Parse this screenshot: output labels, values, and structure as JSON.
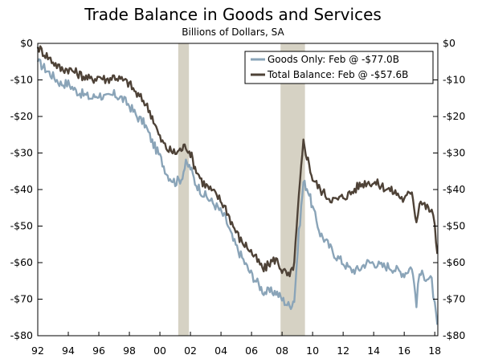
{
  "chart_data": {
    "type": "line",
    "title": "Trade Balance in Goods and Services",
    "subtitle": "Billions of Dollars, SA",
    "xlabel": "",
    "ylabel": "",
    "x_ticks": [
      "92",
      "94",
      "96",
      "98",
      "00",
      "02",
      "04",
      "06",
      "08",
      "10",
      "12",
      "14",
      "16",
      "18"
    ],
    "x_range": [
      1992,
      2018.2
    ],
    "y_ticks": [
      "$0",
      "-$10",
      "-$20",
      "-$30",
      "-$40",
      "-$50",
      "-$60",
      "-$70",
      "-$80"
    ],
    "y_tick_values": [
      0,
      -10,
      -20,
      -30,
      -40,
      -50,
      -60,
      -70,
      -80
    ],
    "ylim": [
      -80,
      0
    ],
    "recessions": [
      [
        2001.2,
        2001.9
      ],
      [
        2007.9,
        2009.5
      ]
    ],
    "legend": {
      "position": "top-right"
    },
    "series": [
      {
        "name": "Goods Only: Feb @ -$77.0B",
        "color": "#8aa4b8",
        "points": [
          [
            1992.0,
            -5
          ],
          [
            1992.5,
            -7
          ],
          [
            1993.0,
            -9
          ],
          [
            1993.5,
            -11
          ],
          [
            1994.0,
            -11
          ],
          [
            1994.5,
            -13
          ],
          [
            1995.0,
            -14
          ],
          [
            1995.5,
            -15
          ],
          [
            1996.0,
            -14
          ],
          [
            1996.5,
            -15
          ],
          [
            1997.0,
            -14
          ],
          [
            1997.5,
            -15
          ],
          [
            1998.0,
            -17
          ],
          [
            1998.5,
            -20
          ],
          [
            1999.0,
            -22
          ],
          [
            1999.5,
            -27
          ],
          [
            2000.0,
            -31
          ],
          [
            2000.5,
            -36
          ],
          [
            2001.0,
            -38
          ],
          [
            2001.4,
            -37
          ],
          [
            2001.7,
            -33
          ],
          [
            2002.0,
            -34
          ],
          [
            2002.3,
            -38
          ],
          [
            2002.8,
            -41
          ],
          [
            2003.3,
            -43
          ],
          [
            2003.8,
            -45
          ],
          [
            2004.3,
            -48
          ],
          [
            2004.8,
            -54
          ],
          [
            2005.3,
            -58
          ],
          [
            2005.8,
            -62
          ],
          [
            2006.3,
            -65
          ],
          [
            2006.8,
            -68
          ],
          [
            2007.2,
            -68
          ],
          [
            2007.6,
            -68
          ],
          [
            2008.0,
            -70
          ],
          [
            2008.5,
            -72
          ],
          [
            2008.8,
            -70
          ],
          [
            2009.1,
            -52
          ],
          [
            2009.4,
            -38
          ],
          [
            2009.7,
            -40
          ],
          [
            2010.0,
            -45
          ],
          [
            2010.5,
            -52
          ],
          [
            2011.0,
            -55
          ],
          [
            2011.5,
            -58
          ],
          [
            2012.0,
            -60
          ],
          [
            2012.5,
            -62
          ],
          [
            2013.0,
            -62
          ],
          [
            2013.5,
            -60
          ],
          [
            2014.0,
            -60
          ],
          [
            2014.5,
            -61
          ],
          [
            2015.0,
            -61
          ],
          [
            2015.5,
            -62
          ],
          [
            2016.0,
            -63
          ],
          [
            2016.5,
            -61
          ],
          [
            2016.8,
            -71
          ],
          [
            2017.0,
            -63
          ],
          [
            2017.5,
            -64
          ],
          [
            2017.8,
            -65
          ],
          [
            2018.0,
            -72
          ],
          [
            2018.17,
            -77
          ]
        ]
      },
      {
        "name": "Total Balance: Feb @ -$57.6B",
        "color": "#4e4237",
        "points": [
          [
            1992.0,
            -1
          ],
          [
            1992.5,
            -3
          ],
          [
            1993.0,
            -5
          ],
          [
            1993.5,
            -7
          ],
          [
            1994.0,
            -7
          ],
          [
            1994.5,
            -8
          ],
          [
            1995.0,
            -9
          ],
          [
            1995.5,
            -10
          ],
          [
            1996.0,
            -9
          ],
          [
            1996.5,
            -10
          ],
          [
            1997.0,
            -9
          ],
          [
            1997.5,
            -10
          ],
          [
            1998.0,
            -11
          ],
          [
            1998.5,
            -14
          ],
          [
            1999.0,
            -16
          ],
          [
            1999.5,
            -20
          ],
          [
            2000.0,
            -26
          ],
          [
            2000.5,
            -29
          ],
          [
            2001.0,
            -30
          ],
          [
            2001.4,
            -29
          ],
          [
            2001.7,
            -28
          ],
          [
            2002.0,
            -30
          ],
          [
            2002.3,
            -34
          ],
          [
            2002.8,
            -38
          ],
          [
            2003.3,
            -40
          ],
          [
            2003.8,
            -42
          ],
          [
            2004.3,
            -45
          ],
          [
            2004.8,
            -50
          ],
          [
            2005.3,
            -54
          ],
          [
            2005.8,
            -56
          ],
          [
            2006.3,
            -59
          ],
          [
            2006.8,
            -62
          ],
          [
            2007.2,
            -60
          ],
          [
            2007.6,
            -59
          ],
          [
            2008.0,
            -62
          ],
          [
            2008.5,
            -64
          ],
          [
            2008.8,
            -60
          ],
          [
            2009.1,
            -42
          ],
          [
            2009.4,
            -27
          ],
          [
            2009.7,
            -32
          ],
          [
            2010.0,
            -37
          ],
          [
            2010.5,
            -40
          ],
          [
            2011.0,
            -42
          ],
          [
            2011.5,
            -43
          ],
          [
            2012.0,
            -42
          ],
          [
            2012.5,
            -41
          ],
          [
            2013.0,
            -39
          ],
          [
            2013.5,
            -38
          ],
          [
            2014.0,
            -38
          ],
          [
            2014.5,
            -39
          ],
          [
            2015.0,
            -40
          ],
          [
            2015.5,
            -41
          ],
          [
            2016.0,
            -43
          ],
          [
            2016.5,
            -40
          ],
          [
            2016.8,
            -49
          ],
          [
            2017.0,
            -43
          ],
          [
            2017.5,
            -45
          ],
          [
            2017.8,
            -46
          ],
          [
            2018.0,
            -50
          ],
          [
            2018.17,
            -57.6
          ]
        ]
      }
    ]
  }
}
